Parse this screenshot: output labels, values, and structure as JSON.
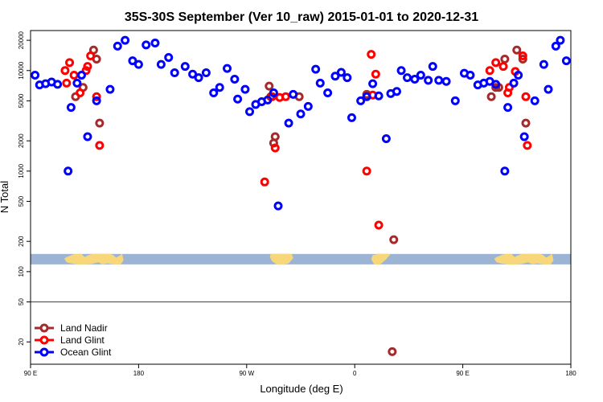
{
  "chart_data": {
    "type": "scatter",
    "title": "35S-30S September (Ver 10_raw)   2015-01-01 to 2020-12-31",
    "xlabel": "Longitude (deg E)",
    "ylabel": "N Total",
    "y_scale": "log",
    "xlim": [
      90,
      450
    ],
    "ylim": [
      12,
      25000
    ],
    "x_ticks": [
      {
        "value": 90,
        "label": "90 E"
      },
      {
        "value": 162,
        "label": "180"
      },
      {
        "value": 234,
        "label": "90 W"
      },
      {
        "value": 306,
        "label": "0"
      },
      {
        "value": 378,
        "label": "90 E"
      },
      {
        "value": 450,
        "label": "180"
      }
    ],
    "y_ticks": [
      {
        "value": 20,
        "label": "20"
      },
      {
        "value": 50,
        "label": "50"
      },
      {
        "value": 100,
        "label": "100"
      },
      {
        "value": 200,
        "label": "200"
      },
      {
        "value": 500,
        "label": "500"
      },
      {
        "value": 1000,
        "label": "1000"
      },
      {
        "value": 2000,
        "label": "2000"
      },
      {
        "value": 5000,
        "label": "5000"
      },
      {
        "value": 10000,
        "label": "10000"
      },
      {
        "value": 20000,
        "label": "20000"
      }
    ],
    "reference_line": 50,
    "land_strip": {
      "ymin": 118,
      "ymax": 150,
      "ocean_color": "#9db3d4",
      "land_color": "#f7d77a"
    },
    "legend": {
      "position": "bottom-left"
    },
    "series": [
      {
        "name": "Land Nadir",
        "color": "#a52a2a",
        "points": [
          [
            120,
            5500
          ],
          [
            125,
            6800
          ],
          [
            132,
            16000
          ],
          [
            134,
            13000
          ],
          [
            136,
            3000
          ],
          [
            249,
            7000
          ],
          [
            250,
            5500
          ],
          [
            252,
            1900
          ],
          [
            253,
            2200
          ],
          [
            269,
            5500
          ],
          [
            314,
            5800
          ],
          [
            331,
            16
          ],
          [
            332,
            208
          ],
          [
            397,
            5500
          ],
          [
            400,
            6800
          ],
          [
            402,
            6800
          ],
          [
            406,
            13000
          ],
          [
            414,
            16000
          ],
          [
            418,
            13000
          ],
          [
            420,
            3000
          ]
        ]
      },
      {
        "name": "Land Glint",
        "color": "#ff0000",
        "points": [
          [
            113,
            10000
          ],
          [
            114,
            7500
          ],
          [
            116,
            12000
          ],
          [
            119,
            9000
          ],
          [
            123,
            6000
          ],
          [
            127,
            10000
          ],
          [
            128,
            11000
          ],
          [
            130,
            14000
          ],
          [
            134,
            5500
          ],
          [
            136,
            1800
          ],
          [
            246,
            780
          ],
          [
            251,
            5500
          ],
          [
            253,
            1700
          ],
          [
            256,
            5400
          ],
          [
            260,
            5500
          ],
          [
            314,
            1000
          ],
          [
            317,
            14500
          ],
          [
            318,
            5700
          ],
          [
            320,
            9200
          ],
          [
            322,
            290
          ],
          [
            396,
            10000
          ],
          [
            400,
            12000
          ],
          [
            405,
            11000
          ],
          [
            408,
            6000
          ],
          [
            409,
            6800
          ],
          [
            413,
            9800
          ],
          [
            418,
            14000
          ],
          [
            420,
            5500
          ],
          [
            421,
            1800
          ]
        ]
      },
      {
        "name": "Ocean Glint",
        "color": "#0000ff",
        "points": [
          [
            93,
            9000
          ],
          [
            96,
            7200
          ],
          [
            100,
            7400
          ],
          [
            104,
            7700
          ],
          [
            108,
            7300
          ],
          [
            115,
            1000
          ],
          [
            117,
            4300
          ],
          [
            121,
            7500
          ],
          [
            124,
            9000
          ],
          [
            128,
            2200
          ],
          [
            134,
            5000
          ],
          [
            143,
            6500
          ],
          [
            148,
            17500
          ],
          [
            153,
            20000
          ],
          [
            158,
            12500
          ],
          [
            162,
            11500
          ],
          [
            167,
            18000
          ],
          [
            173,
            18800
          ],
          [
            177,
            11500
          ],
          [
            182,
            13500
          ],
          [
            186,
            9500
          ],
          [
            193,
            11000
          ],
          [
            198,
            9200
          ],
          [
            202,
            8500
          ],
          [
            207,
            9500
          ],
          [
            212,
            6000
          ],
          [
            216,
            6800
          ],
          [
            221,
            10500
          ],
          [
            226,
            8200
          ],
          [
            228,
            5200
          ],
          [
            233,
            6500
          ],
          [
            236,
            3900
          ],
          [
            240,
            4600
          ],
          [
            244,
            4900
          ],
          [
            248,
            5100
          ],
          [
            252,
            6000
          ],
          [
            255,
            450
          ],
          [
            262,
            3000
          ],
          [
            265,
            5800
          ],
          [
            270,
            3700
          ],
          [
            275,
            4400
          ],
          [
            280,
            10300
          ],
          [
            283,
            7500
          ],
          [
            288,
            6000
          ],
          [
            293,
            8800
          ],
          [
            297,
            9600
          ],
          [
            301,
            8500
          ],
          [
            304,
            3400
          ],
          [
            310,
            5000
          ],
          [
            314,
            5500
          ],
          [
            318,
            7400
          ],
          [
            322,
            5600
          ],
          [
            327,
            2100
          ],
          [
            330,
            5900
          ],
          [
            334,
            6200
          ],
          [
            337,
            10000
          ],
          [
            341,
            8500
          ],
          [
            346,
            8200
          ],
          [
            350,
            9000
          ],
          [
            355,
            8000
          ],
          [
            358,
            11000
          ],
          [
            362,
            8000
          ],
          [
            367,
            7800
          ],
          [
            373,
            5000
          ],
          [
            379,
            9400
          ],
          [
            383,
            9000
          ],
          [
            388,
            7200
          ],
          [
            392,
            7500
          ],
          [
            396,
            7800
          ],
          [
            400,
            7300
          ],
          [
            406,
            1000
          ],
          [
            408,
            4300
          ],
          [
            412,
            7500
          ],
          [
            415,
            9000
          ],
          [
            419,
            2200
          ],
          [
            426,
            5000
          ],
          [
            432,
            11500
          ],
          [
            435,
            6500
          ],
          [
            440,
            17500
          ],
          [
            443,
            20000
          ],
          [
            447,
            12500
          ]
        ]
      }
    ]
  }
}
